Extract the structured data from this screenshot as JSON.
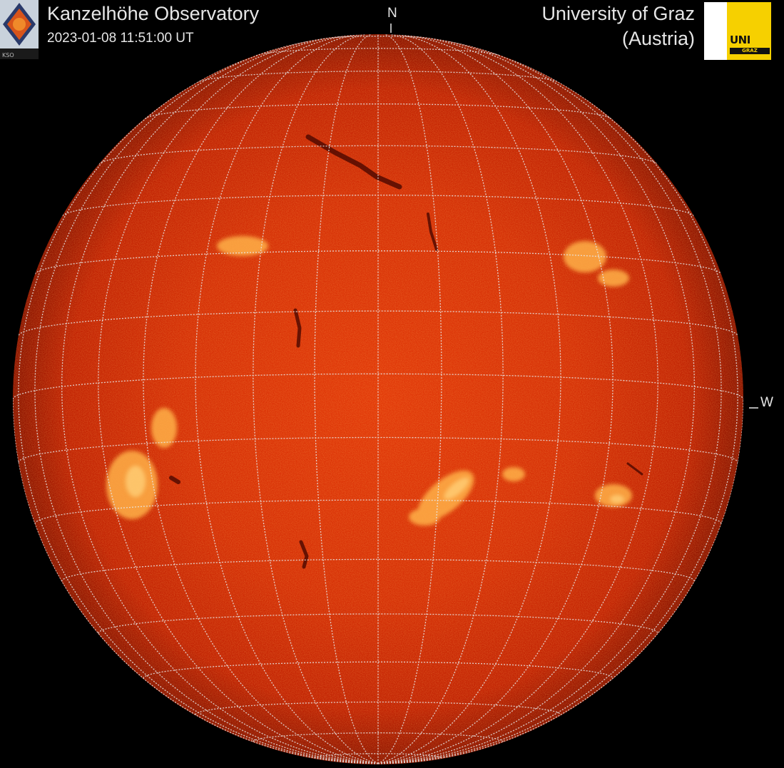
{
  "header": {
    "observatory": "Kanzelhöhe Observatory",
    "timestamp": "2023-01-08 11:51:00 UT",
    "university_line1": "University of Graz",
    "university_line2": "(Austria)"
  },
  "orientation": {
    "north": "N",
    "west": "W"
  },
  "logos": {
    "kso": "kso-logo",
    "uni_graz": "uni-graz-logo",
    "uni_graz_word": "UNI",
    "uni_graz_sub": "GRAZ"
  },
  "image": {
    "subject": "sun",
    "colors": {
      "background": "#000000",
      "disk_center": "#e23808",
      "disk_mid": "#c82504",
      "disk_limb": "#8a1300",
      "plage": "#ffb24a",
      "filament": "#4a0800",
      "grid": "#e8e8e8"
    },
    "grid": {
      "latitude_step_deg": 10,
      "longitude_step_deg": 10
    }
  }
}
